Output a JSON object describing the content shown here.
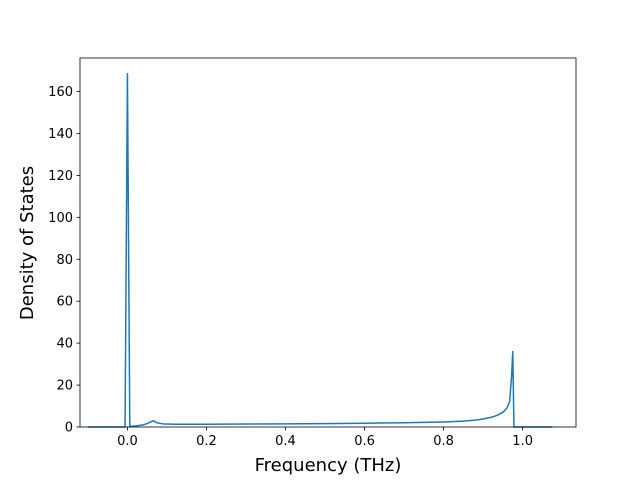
{
  "chart_data": {
    "type": "line",
    "title": "",
    "xlabel": "Frequency (THz)",
    "ylabel": "Density of States",
    "xlim": [
      -0.12,
      1.135
    ],
    "ylim": [
      0,
      176
    ],
    "xticks": [
      0.0,
      0.2,
      0.4,
      0.6,
      0.8,
      1.0
    ],
    "xtick_labels": [
      "0.0",
      "0.2",
      "0.4",
      "0.6",
      "0.8",
      "1.0"
    ],
    "yticks": [
      0,
      20,
      40,
      60,
      80,
      100,
      120,
      140,
      160
    ],
    "ytick_labels": [
      "0",
      "20",
      "40",
      "60",
      "80",
      "100",
      "120",
      "140",
      "160"
    ],
    "grid": false,
    "legend": false,
    "series": [
      {
        "color": "#1f77b4",
        "x": [
          -0.1,
          -0.01,
          -0.006,
          0.0,
          0.006,
          0.01,
          0.02,
          0.04,
          0.055,
          0.065,
          0.075,
          0.09,
          0.12,
          0.2,
          0.3,
          0.4,
          0.5,
          0.6,
          0.7,
          0.75,
          0.8,
          0.85,
          0.88,
          0.9,
          0.92,
          0.935,
          0.95,
          0.96,
          0.967,
          0.972,
          0.975,
          0.978,
          0.985,
          1.0,
          1.04,
          1.075
        ],
        "y": [
          0,
          0,
          0,
          168.5,
          0,
          0.3,
          0.5,
          1.0,
          2.0,
          3.0,
          2.0,
          1.5,
          1.3,
          1.3,
          1.4,
          1.5,
          1.6,
          1.8,
          2.0,
          2.2,
          2.4,
          2.8,
          3.3,
          3.8,
          4.6,
          5.5,
          7.0,
          9.0,
          12.0,
          24.0,
          36.0,
          0,
          0,
          0,
          0,
          0
        ]
      }
    ]
  }
}
